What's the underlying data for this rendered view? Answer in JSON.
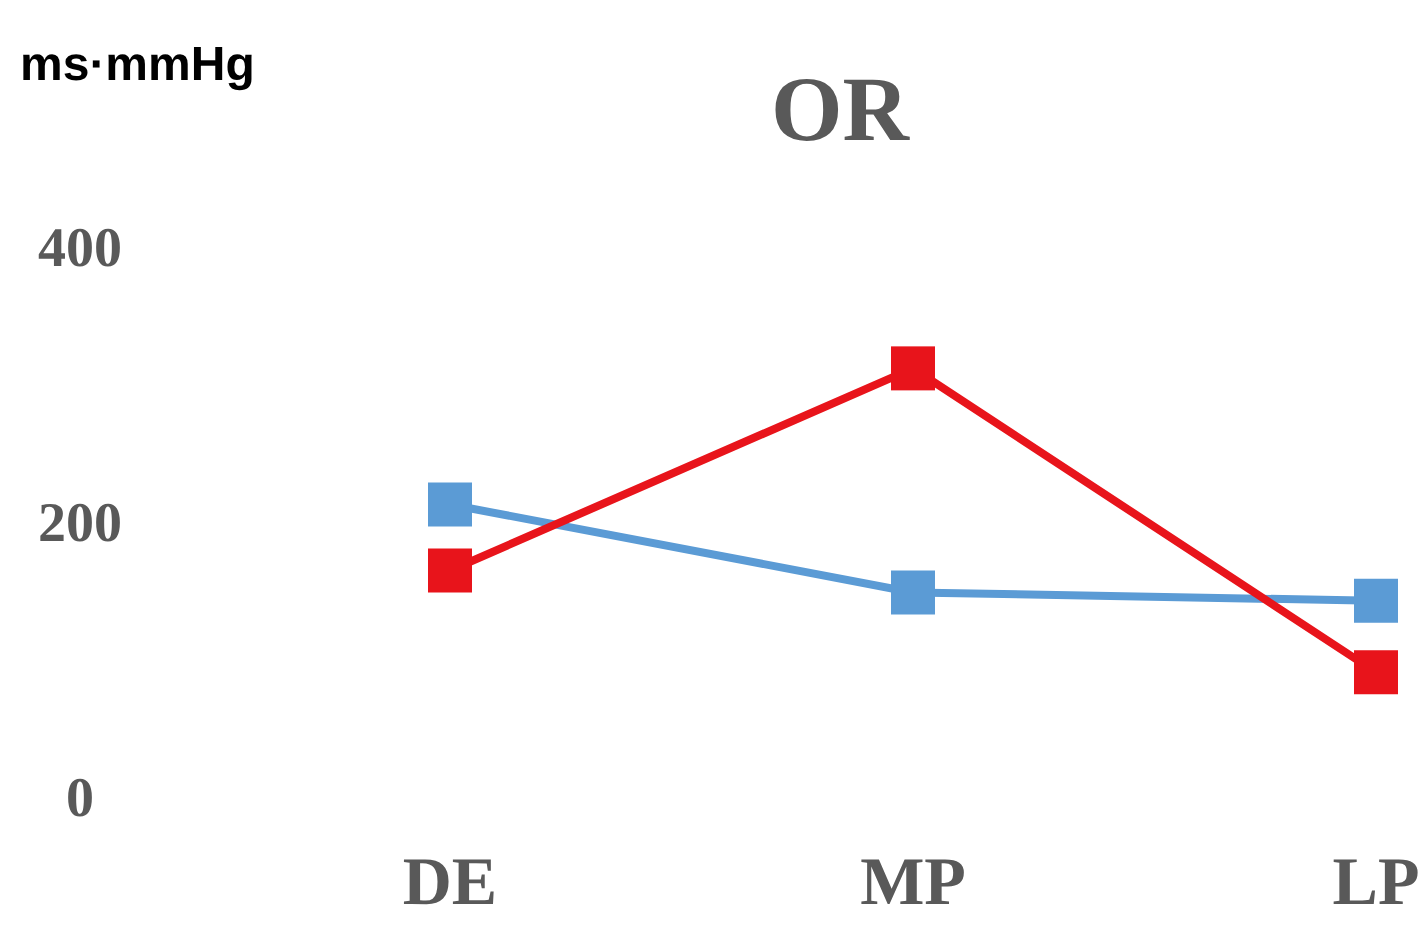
{
  "chart_data": {
    "type": "line",
    "title": "OR",
    "ylabel": "ms·mmHg",
    "categories": [
      "DE",
      "MP",
      "LP"
    ],
    "series": [
      {
        "color": "#5b9bd5",
        "values": [
          212,
          148,
          142
        ]
      },
      {
        "color": "#e8141b",
        "values": [
          164,
          311,
          90
        ]
      }
    ],
    "ylim": [
      0,
      400
    ],
    "yticks": [
      0,
      200,
      400
    ],
    "grid": false,
    "marker": "square",
    "line_style": "solid"
  }
}
